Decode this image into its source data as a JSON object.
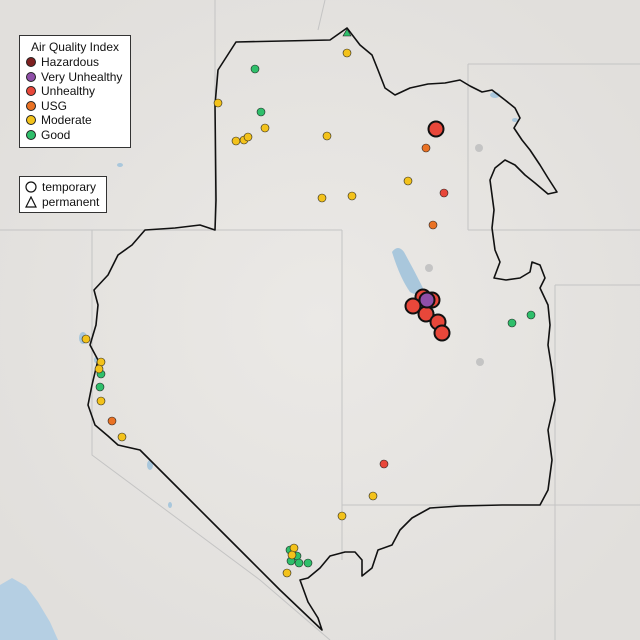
{
  "legend_aqi": {
    "title": "Air Quality Index",
    "items": [
      {
        "label": "Hazardous",
        "color": "#7e2020"
      },
      {
        "label": "Very Unhealthy",
        "color": "#8f4fa8"
      },
      {
        "label": "Unhealthy",
        "color": "#e8473a"
      },
      {
        "label": "USG",
        "color": "#ea7224"
      },
      {
        "label": "Moderate",
        "color": "#f3c21b"
      },
      {
        "label": "Good",
        "color": "#2fbf6b"
      }
    ]
  },
  "legend_type": {
    "items": [
      {
        "label": "temporary",
        "shape": "circle"
      },
      {
        "label": "permanent",
        "shape": "triangle"
      }
    ]
  },
  "colors": {
    "background": "#e7e5e2",
    "state_lines": "#c4c4c4",
    "boundary": "#111111",
    "water": "#a9c7dc",
    "no_data": "#c4c4c4"
  }
}
